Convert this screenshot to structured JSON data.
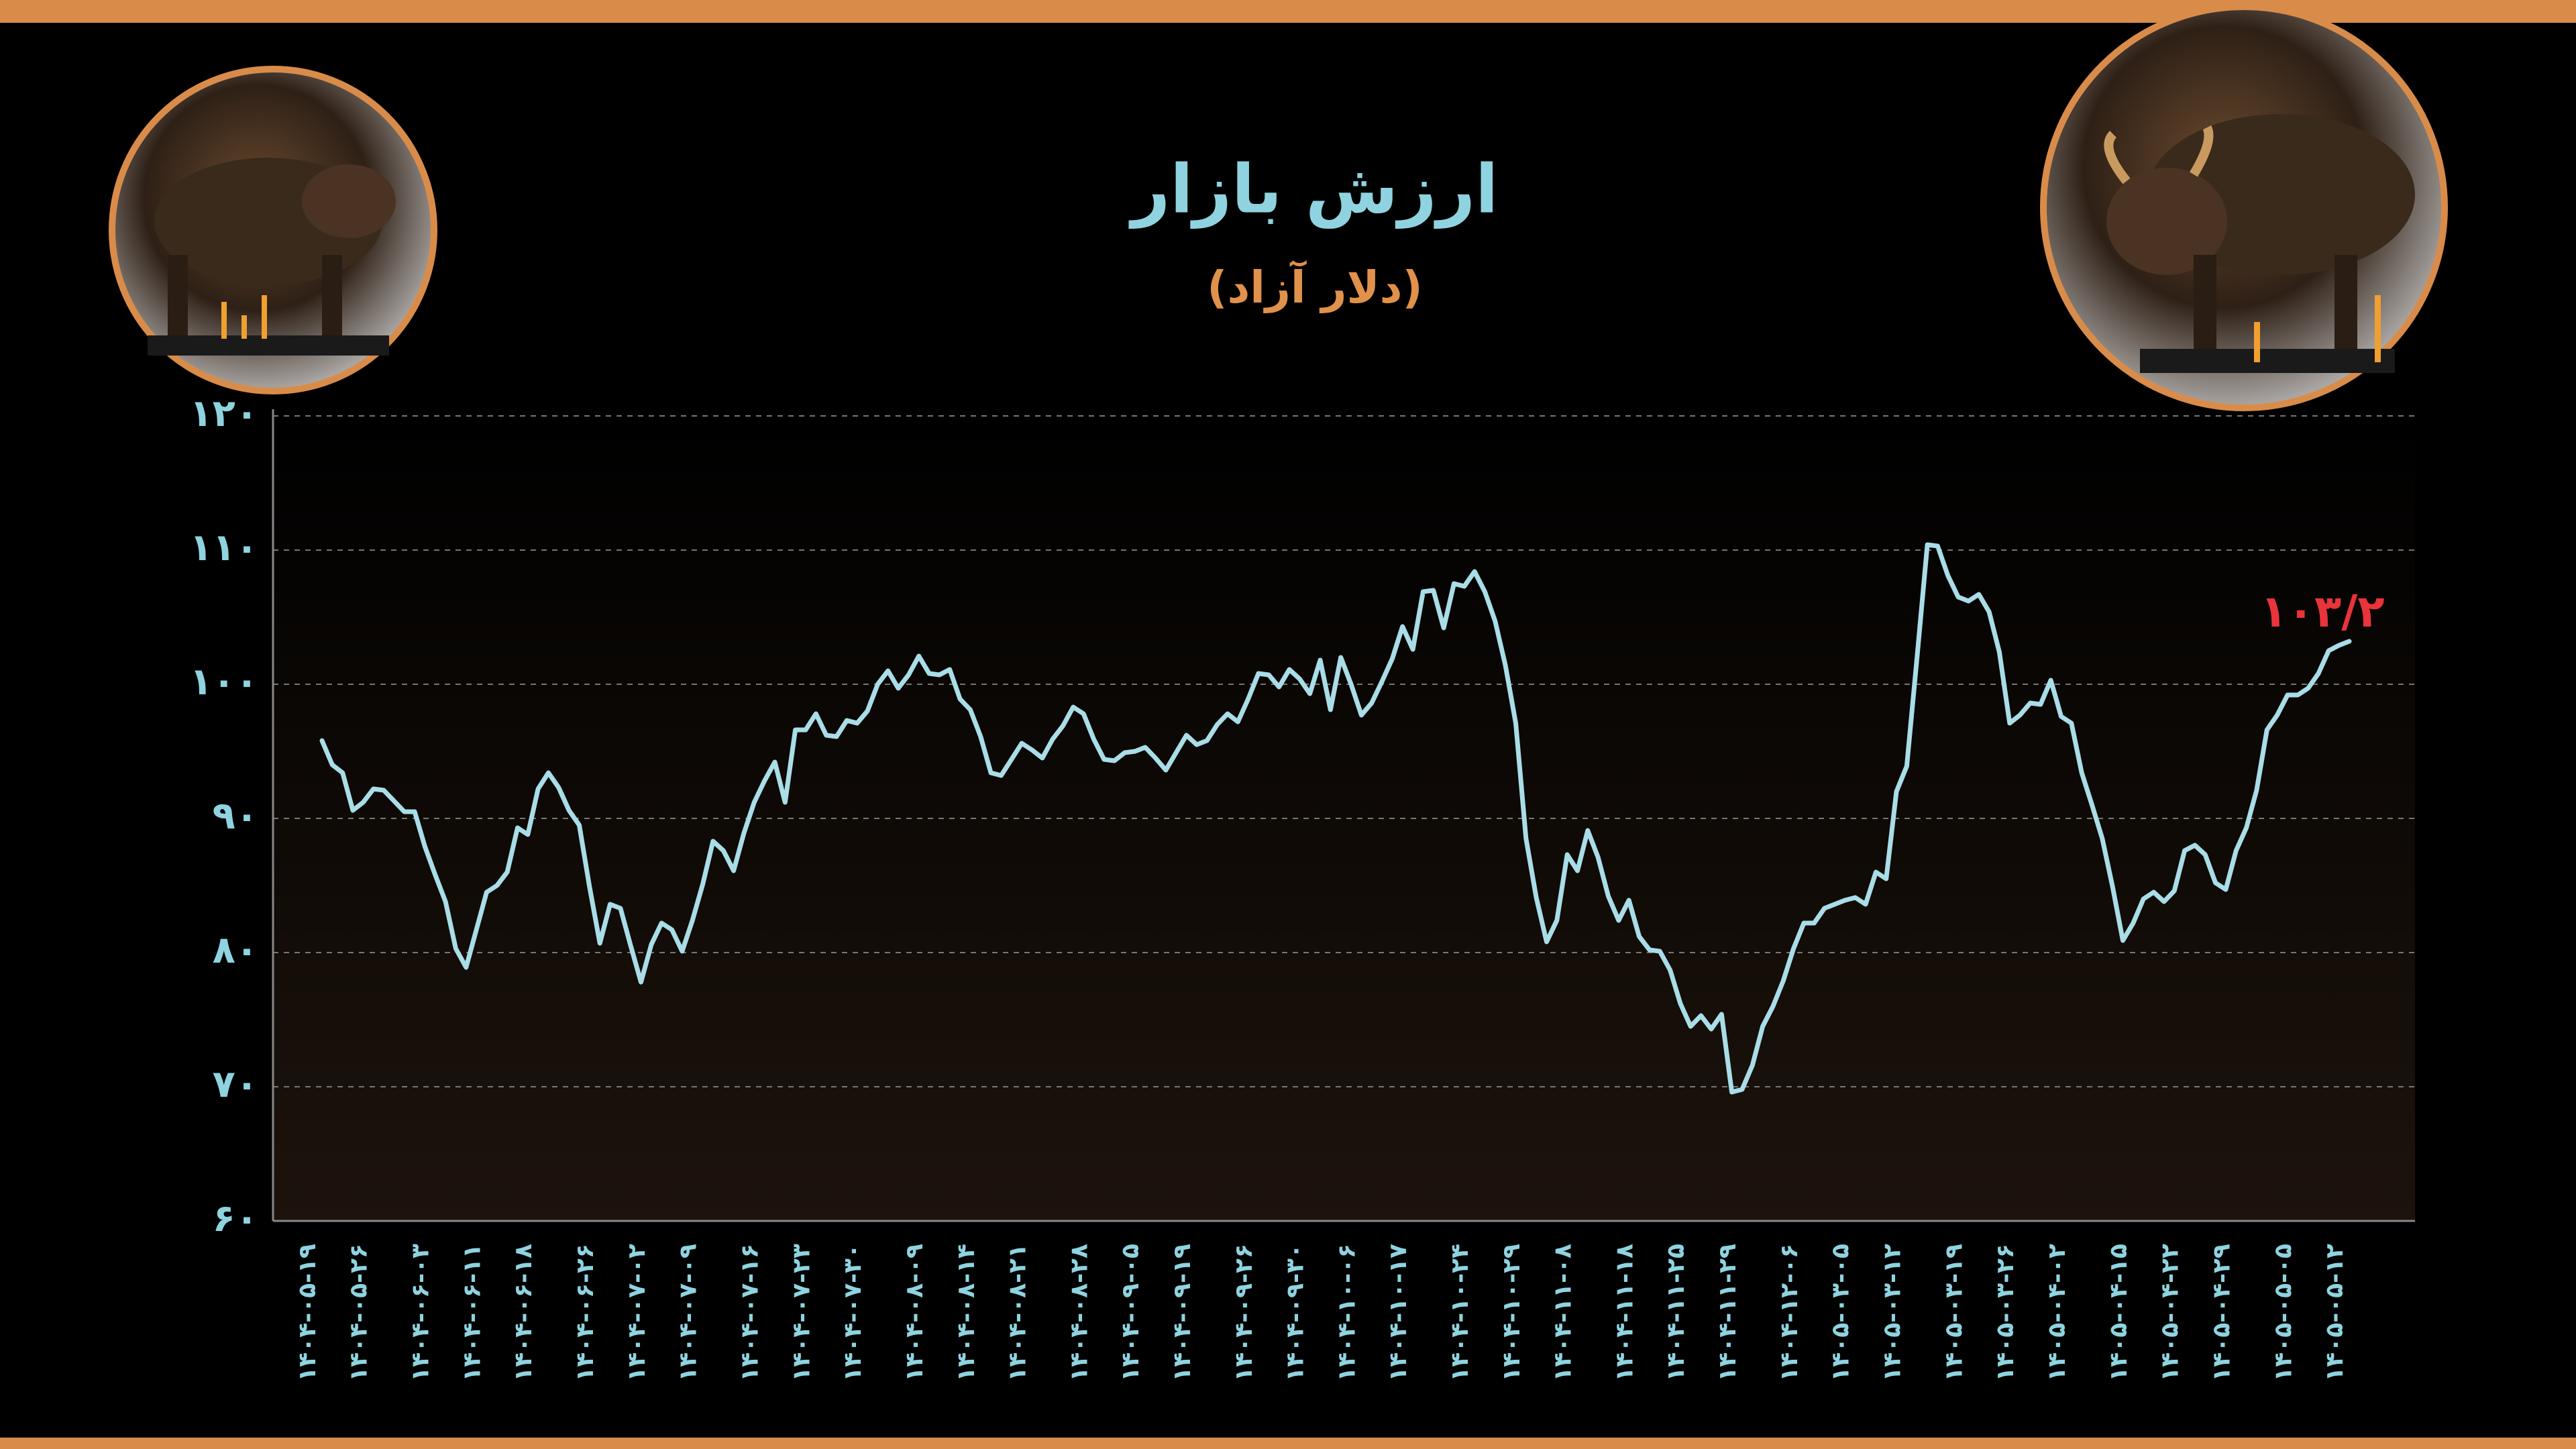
{
  "chart_data": {
    "type": "line",
    "title": "ارزش بازار",
    "subtitle": "(دلار آزاد)",
    "color": "#a9dde8",
    "grid": true,
    "ylim": [
      60,
      120
    ],
    "yticks": [
      {
        "value": 60,
        "label": "۶۰"
      },
      {
        "value": 70,
        "label": "۷۰"
      },
      {
        "value": 80,
        "label": "۸۰"
      },
      {
        "value": 90,
        "label": "۹۰"
      },
      {
        "value": 100,
        "label": "۱۰۰"
      },
      {
        "value": 110,
        "label": "۱۱۰"
      },
      {
        "value": 120,
        "label": "۱۲۰"
      }
    ],
    "categories": [
      "۱۴۰۴-۰۵-۱۹",
      null,
      null,
      null,
      null,
      "۱۴۰۴-۰۵-۲۶",
      null,
      null,
      null,
      null,
      null,
      "۱۴۰۴-۰۶-۰۳",
      null,
      null,
      null,
      null,
      "۱۴۰۴-۰۶-۱۱",
      null,
      null,
      null,
      null,
      "۱۴۰۴-۰۶-۱۸",
      null,
      null,
      null,
      null,
      null,
      "۱۴۰۴-۰۶-۲۶",
      null,
      null,
      null,
      null,
      "۱۴۰۴-۰۷-۰۲",
      null,
      null,
      null,
      null,
      "۱۴۰۴-۰۷-۰۹",
      null,
      null,
      null,
      null,
      null,
      "۱۴۰۴-۰۷-۱۶",
      null,
      null,
      null,
      null,
      "۱۴۰۴-۰۷-۲۳",
      null,
      null,
      null,
      null,
      "۱۴۰۴-۰۷-۳۰",
      null,
      null,
      null,
      null,
      null,
      "۱۴۰۴-۰۸-۰۹",
      null,
      null,
      null,
      null,
      "۱۴۰۴-۰۸-۱۴",
      null,
      null,
      null,
      null,
      "۱۴۰۴-۰۸-۲۱",
      null,
      null,
      null,
      null,
      null,
      "۱۴۰۴-۰۸-۲۸",
      null,
      null,
      null,
      null,
      "۱۴۰۴-۰۹-۰۵",
      null,
      null,
      null,
      null,
      "۱۴۰۴-۰۹-۱۹",
      null,
      null,
      null,
      null,
      null,
      "۱۴۰۴-۰۹-۲۶",
      null,
      null,
      null,
      null,
      "۱۴۰۴-۰۹-۳۰",
      null,
      null,
      null,
      null,
      "۱۴۰۴-۱۰-۰۶",
      null,
      null,
      null,
      null,
      "۱۴۰۴-۱۰-۱۷",
      null,
      null,
      null,
      null,
      null,
      "۱۴۰۴-۱۰-۲۴",
      null,
      null,
      null,
      null,
      "۱۴۰۴-۱۰-۲۹",
      null,
      null,
      null,
      null,
      "۱۴۰۴-۱۱-۰۸",
      null,
      null,
      null,
      null,
      null,
      "۱۴۰۴-۱۱-۱۸",
      null,
      null,
      null,
      null,
      "۱۴۰۴-۱۱-۲۵",
      null,
      null,
      null,
      null,
      "۱۴۰۴-۱۱-۲۹",
      null,
      null,
      null,
      null,
      null,
      "۱۴۰۴-۱۲-۰۶",
      null,
      null,
      null,
      null,
      "۱۴۰۵-۰۳-۰۵",
      null,
      null,
      null,
      null,
      "۱۴۰۵-۰۳-۱۲",
      null,
      null,
      null,
      null,
      null,
      "۱۴۰۵-۰۳-۱۹",
      null,
      null,
      null,
      null,
      "۱۴۰۵-۰۳-۲۶",
      null,
      null,
      null,
      null,
      "۱۴۰۵-۰۴-۰۲",
      null,
      null,
      null,
      null,
      null,
      "۱۴۰۵-۰۴-۱۵",
      null,
      null,
      null,
      null,
      "۱۴۰۵-۰۴-۲۲",
      null,
      null,
      null,
      null,
      "۱۴۰۵-۰۴-۲۹",
      null,
      null,
      null,
      null,
      null,
      "۱۴۰۵-۰۵-۰۵",
      null,
      null,
      null,
      null,
      "۱۴۰۵-۰۵-۱۲"
    ],
    "values": [
      95.8,
      94.0,
      93.4,
      90.6,
      91.2,
      92.2,
      92.1,
      91.3,
      90.5,
      90.5,
      87.9,
      85.8,
      83.8,
      80.3,
      78.9,
      81.7,
      84.5,
      85.0,
      86.0,
      89.3,
      88.8,
      92.2,
      93.4,
      92.3,
      90.6,
      89.5,
      84.9,
      80.7,
      83.6,
      83.3,
      80.5,
      77.8,
      80.6,
      82.2,
      81.7,
      80.1,
      82.4,
      85.1,
      88.3,
      87.6,
      86.1,
      88.9,
      91.2,
      92.8,
      94.2,
      91.2,
      96.6,
      96.6,
      97.8,
      96.2,
      96.1,
      97.3,
      97.1,
      98.0,
      100.0,
      101.0,
      99.7,
      100.7,
      102.1,
      100.8,
      100.7,
      101.1,
      98.9,
      98.1,
      96.1,
      93.4,
      93.2,
      94.4,
      95.6,
      95.1,
      94.5,
      95.9,
      96.9,
      98.3,
      97.8,
      95.9,
      94.4,
      94.3,
      94.9,
      95.0,
      95.3,
      94.5,
      93.6,
      94.9,
      96.2,
      95.5,
      95.8,
      97.0,
      97.8,
      97.2,
      98.9,
      100.8,
      100.7,
      99.8,
      101.1,
      100.4,
      99.3,
      101.8,
      98.1,
      102.0,
      100.0,
      97.7,
      98.6,
      100.2,
      101.9,
      104.3,
      102.6,
      106.9,
      107.0,
      104.2,
      107.5,
      107.3,
      108.4,
      106.9,
      104.7,
      101.4,
      97.1,
      88.5,
      84.1,
      80.8,
      82.4,
      87.3,
      86.1,
      89.1,
      87.1,
      84.2,
      82.4,
      83.9,
      81.2,
      80.2,
      80.1,
      78.7,
      76.2,
      74.5,
      75.3,
      74.3,
      75.4,
      69.6,
      69.8,
      71.6,
      74.5,
      76.0,
      77.9,
      80.3,
      82.2,
      82.2,
      83.3,
      83.6,
      83.9,
      84.1,
      83.6,
      86.0,
      85.5,
      92.0,
      93.9,
      102.0,
      110.4,
      110.3,
      108.1,
      106.5,
      106.2,
      106.7,
      105.4,
      102.4,
      97.1,
      97.7,
      98.6,
      98.5,
      100.3,
      97.6,
      97.1,
      93.4,
      91.0,
      88.5,
      84.9,
      80.9,
      82.2,
      84.0,
      84.5,
      83.8,
      84.6,
      87.6,
      88.0,
      87.3,
      85.2,
      84.7,
      87.6,
      89.3,
      92.1,
      96.6,
      97.7,
      99.2,
      99.2,
      99.7,
      100.8,
      102.5,
      102.9,
      103.2
    ],
    "value_labels": [
      null,
      null,
      null,
      null,
      null,
      null,
      null,
      null,
      null,
      null,
      null,
      null,
      null,
      null,
      null,
      null,
      null,
      null,
      null,
      null,
      null,
      null,
      null,
      null,
      null,
      null,
      null,
      null,
      null,
      null,
      null,
      null,
      null,
      null,
      null,
      null,
      null,
      null,
      null,
      null,
      null,
      null,
      null,
      null,
      null,
      null,
      null,
      null,
      null,
      null,
      null,
      null,
      null,
      null,
      null,
      null,
      null,
      null,
      null,
      null,
      null,
      null,
      null,
      null,
      null,
      null,
      null,
      null,
      null,
      null,
      null,
      null,
      null,
      null,
      null,
      null,
      null,
      null,
      null,
      null,
      null,
      null,
      null,
      null,
      null,
      null,
      null,
      null,
      null,
      null,
      null,
      null,
      null,
      null,
      null,
      null,
      null,
      null,
      null,
      null,
      null,
      null,
      null,
      null,
      null,
      null,
      null,
      null,
      null,
      null,
      null,
      null,
      null,
      null,
      null,
      null,
      null,
      null,
      null,
      null,
      null,
      null,
      null,
      null,
      null,
      null,
      null,
      null,
      null,
      null,
      null,
      null,
      null,
      null,
      null,
      null,
      null,
      null,
      null,
      null,
      null,
      null,
      null,
      null,
      null,
      null,
      null,
      null,
      null,
      null,
      null,
      null,
      null,
      null,
      null,
      null,
      null,
      null,
      null,
      null,
      null,
      null,
      null,
      null,
      null,
      null,
      null,
      null,
      null,
      null,
      null,
      null,
      null,
      null,
      null,
      null,
      null,
      null,
      null,
      null,
      null,
      null,
      null,
      null,
      null,
      null,
      null,
      null,
      null,
      null,
      null,
      null,
      null,
      null,
      null,
      null,
      null,
      "۱۰۳/۲"
    ]
  }
}
